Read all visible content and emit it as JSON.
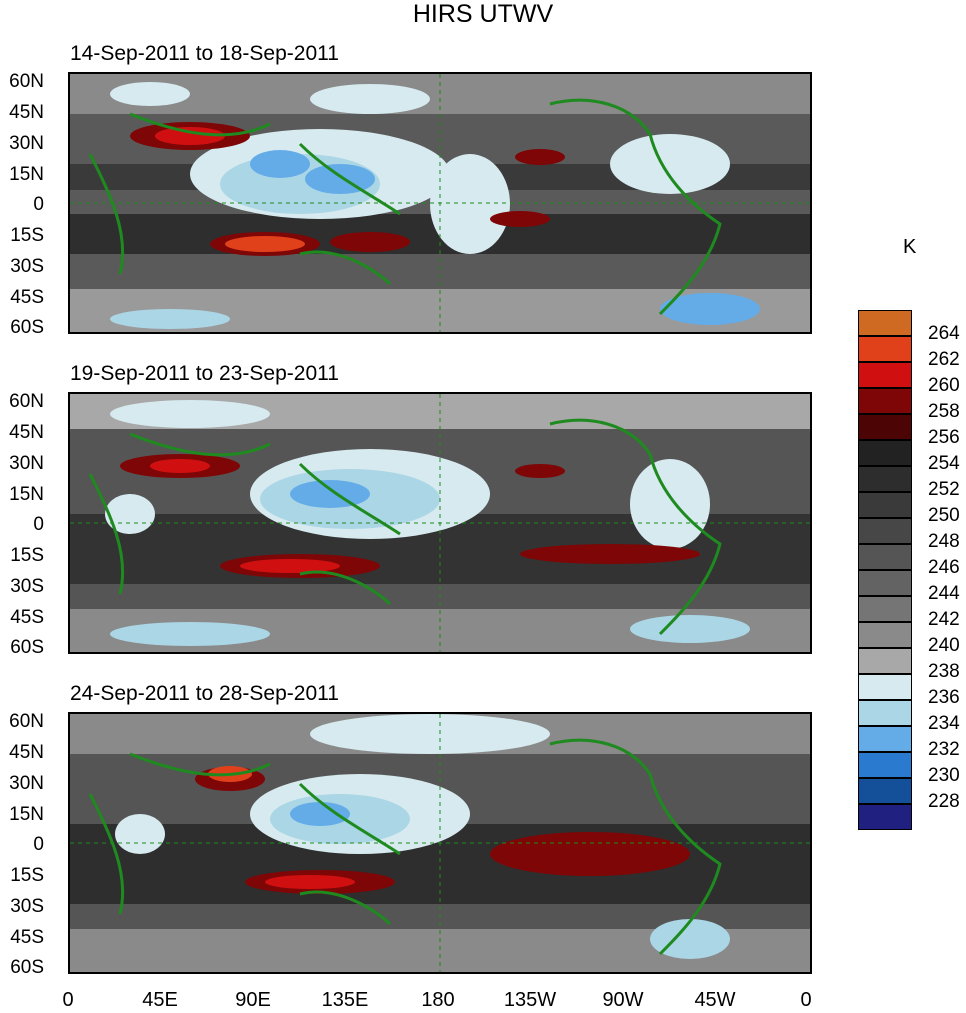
{
  "title": "HIRS UTWV",
  "panels": [
    {
      "label": "14-Sep-2011 to 18-Sep-2011"
    },
    {
      "label": "19-Sep-2011 to 23-Sep-2011"
    },
    {
      "label": "24-Sep-2011 to 28-Sep-2011"
    }
  ],
  "lat_ticks": [
    "60N",
    "45N",
    "30N",
    "15N",
    "0",
    "15S",
    "30S",
    "45S",
    "60S"
  ],
  "lon_ticks": [
    "0",
    "45E",
    "90E",
    "135E",
    "180",
    "135W",
    "90W",
    "45W",
    "0"
  ],
  "colorbar": {
    "unit": "K",
    "labels": [
      "264",
      "262",
      "260",
      "258",
      "256",
      "254",
      "252",
      "250",
      "248",
      "246",
      "244",
      "242",
      "240",
      "238",
      "236",
      "234",
      "232",
      "230",
      "228"
    ],
    "colors": [
      "#cf6a22",
      "#e0411a",
      "#d01010",
      "#7e0606",
      "#4c0404",
      "#222222",
      "#2d2d2d",
      "#3a3a3a",
      "#474747",
      "#555555",
      "#636363",
      "#757575",
      "#8a8a8a",
      "#a8a8a8",
      "#d6eaef",
      "#abd6e6",
      "#64ace8",
      "#2a7ad0",
      "#14509a",
      "#202080"
    ]
  },
  "coastline_color": "#1f8a1f"
}
